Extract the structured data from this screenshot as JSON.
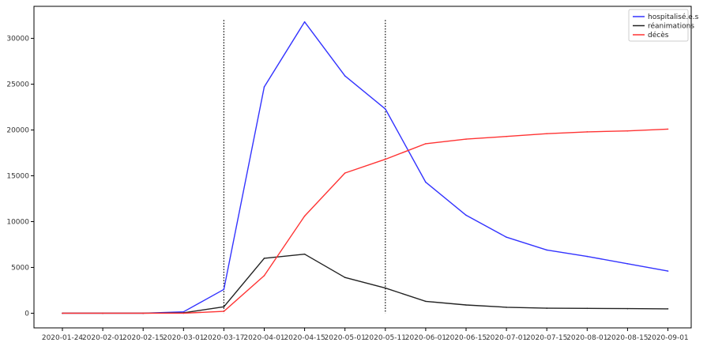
{
  "chart_data": {
    "type": "line",
    "title": "",
    "xlabel": "",
    "ylabel": "",
    "categories": [
      "2020-01-24",
      "2020-02-01",
      "2020-02-15",
      "2020-03-01",
      "2020-03-17",
      "2020-04-01",
      "2020-04-15",
      "2020-05-01",
      "2020-05-11",
      "2020-06-01",
      "2020-06-15",
      "2020-07-01",
      "2020-07-15",
      "2020-08-01",
      "2020-08-15",
      "2020-09-01"
    ],
    "ylim": [
      -1600,
      33500
    ],
    "yticks": [
      0,
      5000,
      10000,
      15000,
      20000,
      25000,
      30000
    ],
    "grid": false,
    "legend_position": "top-right",
    "series": [
      {
        "name": "hospitalisé.e.s",
        "color": "#3333ff",
        "values": [
          0,
          0,
          0,
          150,
          2600,
          24700,
          31800,
          25900,
          22300,
          14300,
          10700,
          8300,
          6900,
          6200,
          5400,
          4600
        ]
      },
      {
        "name": "réanimations",
        "color": "#222222",
        "values": [
          0,
          0,
          0,
          50,
          700,
          6000,
          6450,
          3900,
          2750,
          1300,
          900,
          650,
          550,
          530,
          500,
          480
        ]
      },
      {
        "name": "décès",
        "color": "#ff3333",
        "values": [
          0,
          0,
          0,
          0,
          200,
          4100,
          10600,
          15300,
          16800,
          18500,
          19000,
          19300,
          19600,
          19800,
          19900,
          20100
        ]
      }
    ],
    "vertical_markers": [
      "2020-03-17",
      "2020-05-11"
    ]
  }
}
